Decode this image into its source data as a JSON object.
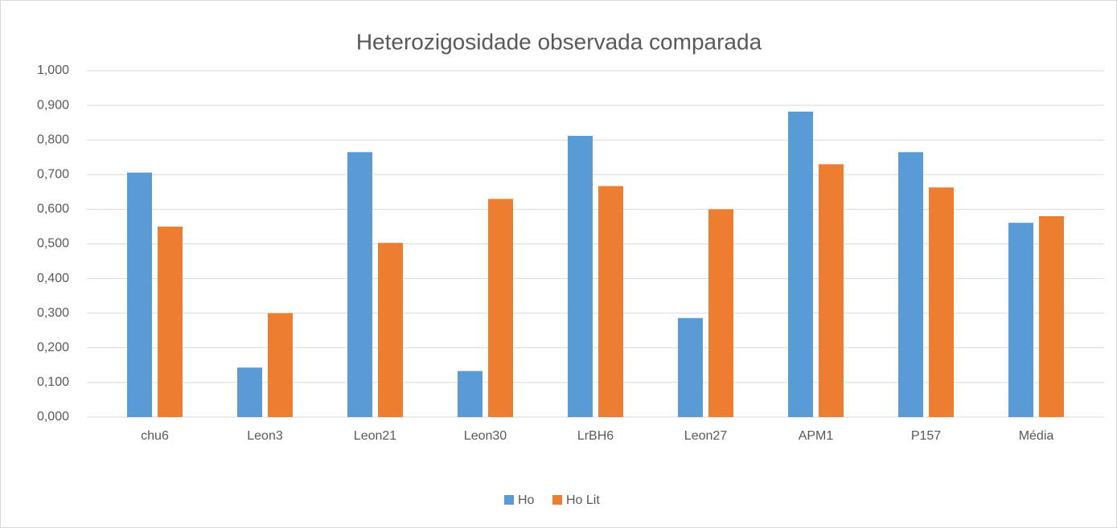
{
  "chart_data": {
    "type": "bar",
    "title": "Heterozigosidade observada comparada",
    "categories": [
      "chu6",
      "Leon3",
      "Leon21",
      "Leon30",
      "LrBH6",
      "Leon27",
      "APM1",
      "P157",
      "Média"
    ],
    "series": [
      {
        "name": "Ho",
        "color": "#5b9bd5",
        "values": [
          0.706,
          0.143,
          0.765,
          0.133,
          0.812,
          0.286,
          0.882,
          0.765,
          0.561
        ]
      },
      {
        "name": "Ho Lit",
        "color": "#ed7d31",
        "values": [
          0.55,
          0.3,
          0.503,
          0.63,
          0.667,
          0.6,
          0.73,
          0.663,
          0.58
        ]
      }
    ],
    "ylim": [
      0,
      1
    ],
    "yticks": [
      {
        "value": 0,
        "label": "0,000"
      },
      {
        "value": 0.1,
        "label": "0,100"
      },
      {
        "value": 0.2,
        "label": "0,200"
      },
      {
        "value": 0.3,
        "label": "0,300"
      },
      {
        "value": 0.4,
        "label": "0,400"
      },
      {
        "value": 0.5,
        "label": "0,500"
      },
      {
        "value": 0.6,
        "label": "0,600"
      },
      {
        "value": 0.7,
        "label": "0,700"
      },
      {
        "value": 0.8,
        "label": "0,800"
      },
      {
        "value": 0.9,
        "label": "0,900"
      },
      {
        "value": 1,
        "label": "1,000"
      }
    ],
    "grid": true,
    "legend": "bottom"
  }
}
